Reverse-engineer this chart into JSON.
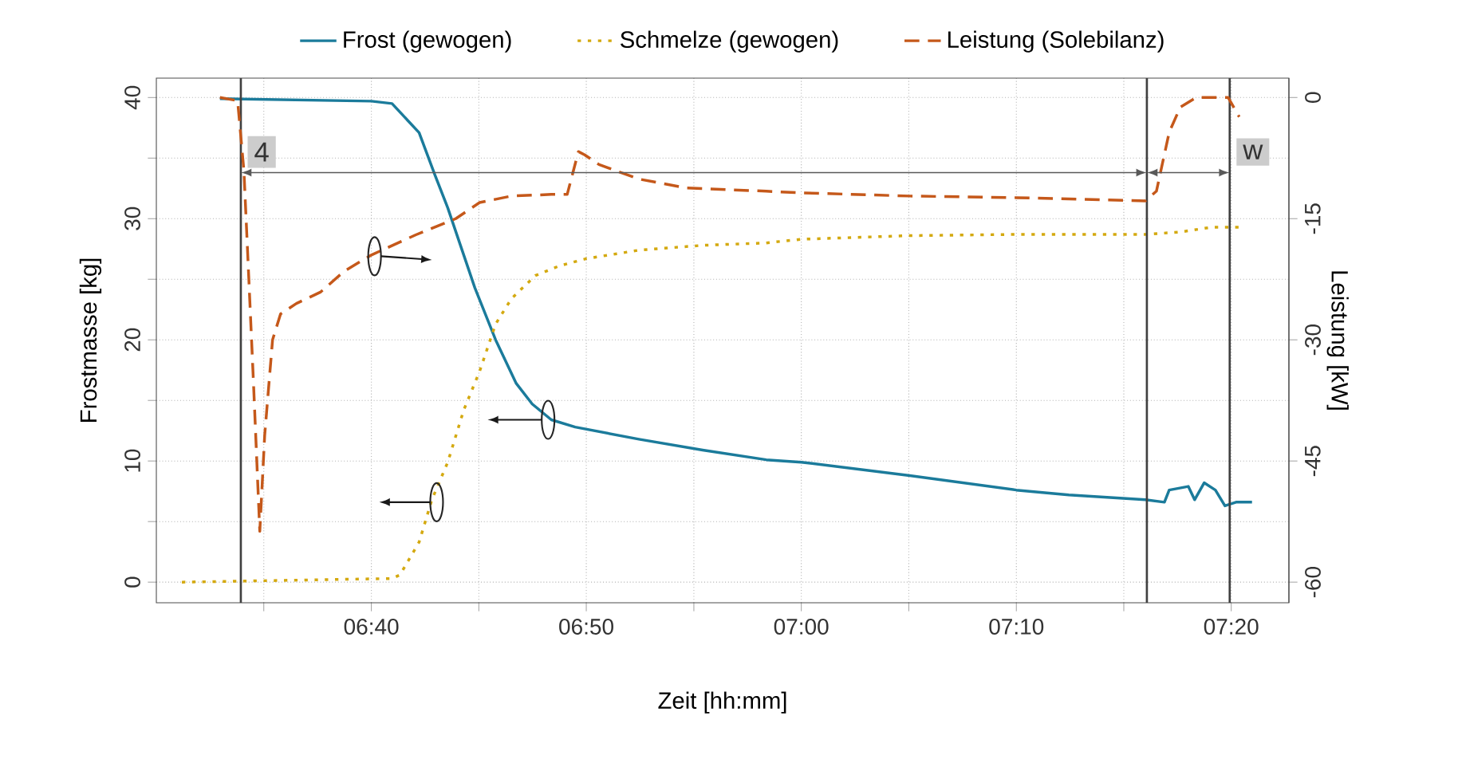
{
  "chart_data": {
    "type": "line",
    "xlabel": "Zeit [hh:mm]",
    "ylabel": "Frostmasse [kg]",
    "y2label": "Leistung [kW]",
    "xlim": [
      6.5,
      7.378
    ],
    "ylim": [
      -1.7,
      41.6
    ],
    "y2lim": [
      -62.55,
      2.4
    ],
    "xticks": [
      {
        "value": 6.5833,
        "label": null
      },
      {
        "value": 6.6667,
        "label": "06:40"
      },
      {
        "value": 6.75,
        "label": null
      },
      {
        "value": 6.8333,
        "label": "06:50"
      },
      {
        "value": 6.9167,
        "label": null
      },
      {
        "value": 7.0,
        "label": "07:00"
      },
      {
        "value": 7.0833,
        "label": null
      },
      {
        "value": 7.1667,
        "label": "07:10"
      },
      {
        "value": 7.25,
        "label": null
      },
      {
        "value": 7.3333,
        "label": "07:20"
      }
    ],
    "yticks": [
      0,
      {
        "value": 5,
        "label": null
      },
      10,
      {
        "value": 15,
        "label": null
      },
      20,
      {
        "value": 25,
        "label": null
      },
      30,
      {
        "value": 35,
        "label": null
      },
      40
    ],
    "y2ticks": [
      -60,
      -45,
      -30,
      -15,
      0
    ],
    "grid": true,
    "legend": "top",
    "marker": "none",
    "series": [
      {
        "name": "Frost (gewogen)",
        "color": "#1b7b9b",
        "line_style": "solid",
        "x": [
          6.5493,
          6.6667,
          6.6827,
          6.7037,
          6.716,
          6.7259,
          6.7469,
          6.763,
          6.779,
          6.7914,
          6.8062,
          6.8247,
          6.8741,
          6.9235,
          6.9728,
          7.0,
          7.084,
          7.1667,
          7.2074,
          7.2667,
          7.2815,
          7.2852,
          7.3,
          7.3049,
          7.3123,
          7.321,
          7.3284,
          7.337,
          7.3494
        ],
        "values": [
          39.9,
          39.7,
          39.5,
          37.1,
          33.6,
          30.9,
          24.3,
          20.0,
          16.4,
          14.7,
          13.4,
          12.8,
          11.8,
          10.9,
          10.1,
          9.9,
          8.8,
          7.6,
          7.2,
          6.8,
          6.6,
          7.6,
          7.9,
          6.8,
          8.2,
          7.6,
          6.3,
          6.6,
          6.6
        ]
      },
      {
        "name": "Schmelze (gewogen)",
        "color": "#d4a90f",
        "line_style": "dotted",
        "x": [
          6.5198,
          6.6827,
          6.6889,
          6.7037,
          6.7136,
          6.7259,
          6.7383,
          6.7506,
          6.763,
          6.7753,
          6.7938,
          6.8123,
          6.8333,
          6.8741,
          6.9235,
          6.9728,
          7.0,
          7.084,
          7.1667,
          7.2667,
          7.2938,
          7.3185,
          7.342
        ],
        "values": [
          0,
          0.3,
          0.6,
          3.3,
          6.8,
          9.9,
          14.2,
          17.4,
          21.3,
          23.4,
          25.3,
          26.1,
          26.7,
          27.4,
          27.8,
          28.0,
          28.3,
          28.6,
          28.7,
          28.7,
          28.9,
          29.3,
          29.3
        ]
      },
      {
        "name": "Leistung (Solebilanz)",
        "color": "#c5581a",
        "line_style": "dashed",
        "axis": "y2",
        "x": [
          6.5493,
          6.563,
          6.5679,
          6.5716,
          6.5753,
          6.5802,
          6.584,
          6.5901,
          6.5963,
          6.6086,
          6.6272,
          6.6457,
          6.6667,
          6.7012,
          6.7321,
          6.7506,
          6.7753,
          6.8062,
          6.8185,
          6.8272,
          6.8321,
          6.8432,
          6.8741,
          6.9111,
          6.9728,
          7.0,
          7.084,
          7.1667,
          7.2667,
          7.2753,
          7.2852,
          7.2938,
          7.3062,
          7.3309,
          7.3395
        ],
        "values": [
          0,
          -0.4,
          -9.1,
          -22.1,
          -35.3,
          -53.7,
          -41.8,
          -30,
          -26.8,
          -25.5,
          -24.1,
          -21.5,
          -19.5,
          -17,
          -15,
          -13,
          -12.2,
          -12,
          -12,
          -6.7,
          -7.1,
          -8.3,
          -10.1,
          -11.2,
          -11.6,
          -11.8,
          -12.2,
          -12.4,
          -12.8,
          -11.6,
          -4.3,
          -1.2,
          0,
          0,
          -2.4
        ]
      }
    ],
    "ref_lines": [
      {
        "axis": "x",
        "value": 6.5655,
        "color": "#404040"
      },
      {
        "axis": "x",
        "value": 7.2679,
        "color": "#404040"
      },
      {
        "axis": "x",
        "value": 7.3321,
        "color": "#404040"
      }
    ],
    "annotations": [
      {
        "text": "4",
        "x": 6.5655,
        "y": 35.5
      },
      {
        "text": "w",
        "x": 7.3321,
        "y": 35.5
      }
    ]
  }
}
